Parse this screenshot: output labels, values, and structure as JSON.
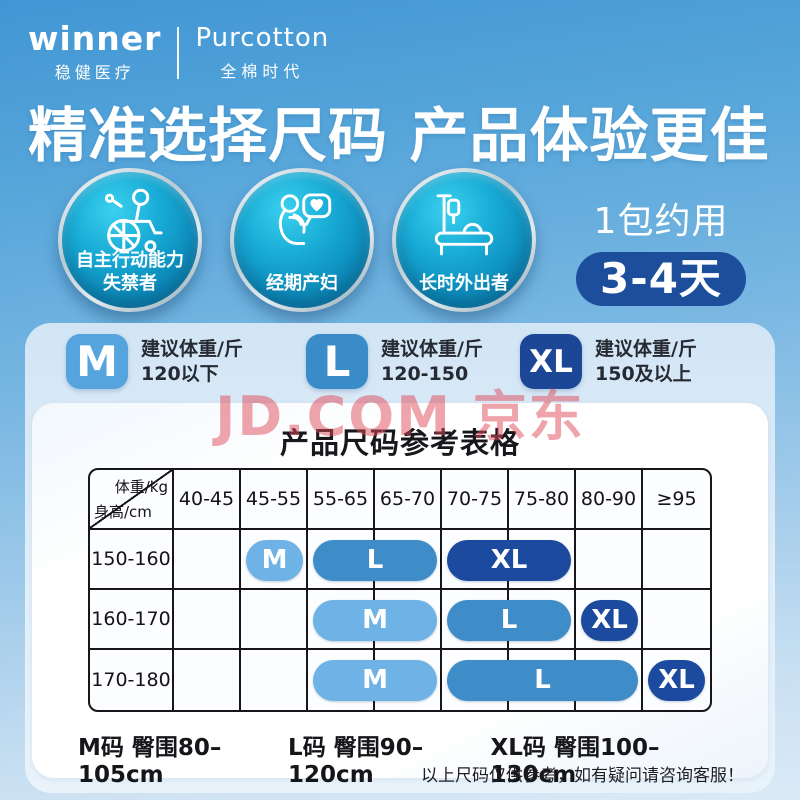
{
  "brand": {
    "winner_logo": "winner",
    "winner_sub": "稳健医疗",
    "purcotton_logo": "Purcotton",
    "purcotton_sub": "全棉时代"
  },
  "hero": {
    "title": "精准选择尺码 产品体验更佳",
    "audiences": [
      {
        "icon": "wheelchair-icon",
        "label": "自主行动能力\n失禁者"
      },
      {
        "icon": "maternity-icon",
        "label": "经期产妇"
      },
      {
        "icon": "bed-patient-icon",
        "label": "长时外出者"
      }
    ],
    "usage": {
      "prefix": "1包约用",
      "days": "3-4天",
      "days_bg": "#1d4e9c"
    }
  },
  "size_badges": [
    {
      "size": "M",
      "line1": "建议体重/斤",
      "line2": "120以下",
      "color": "#55a4de"
    },
    {
      "size": "L",
      "line1": "建议体重/斤",
      "line2": "120-150",
      "color": "#3a8cc9"
    },
    {
      "size": "XL",
      "line1": "建议体重/斤",
      "line2": "150及以上",
      "color": "#1b4796"
    }
  ],
  "watermark": {
    "text": "JD.COM 京东",
    "color": "rgba(224,74,88,0.5)"
  },
  "table": {
    "title": "产品尺码参考表格",
    "corner": {
      "top_right": "体重/kg",
      "bottom_left": "身高/cm"
    },
    "weight_columns": [
      "40-45",
      "45-55",
      "55-65",
      "65-70",
      "70-75",
      "75-80",
      "80-90",
      "≥95"
    ],
    "rows": [
      {
        "height": "150-160",
        "pills": [
          {
            "size": "M",
            "start": 2,
            "span": 1,
            "color": "#6fb3e6"
          },
          {
            "size": "L",
            "start": 3,
            "span": 2,
            "color": "#3e8dc9"
          },
          {
            "size": "XL",
            "start": 5,
            "span": 2,
            "color": "#1b4a9e"
          }
        ]
      },
      {
        "height": "160-170",
        "pills": [
          {
            "size": "M",
            "start": 3,
            "span": 2,
            "color": "#6fb3e6"
          },
          {
            "size": "L",
            "start": 5,
            "span": 2,
            "color": "#3e8dc9"
          },
          {
            "size": "XL",
            "start": 7,
            "span": 1,
            "color": "#1b4a9e"
          }
        ]
      },
      {
        "height": "170-180",
        "pills": [
          {
            "size": "M",
            "start": 3,
            "span": 2,
            "color": "#6fb3e6"
          },
          {
            "size": "L",
            "start": 5,
            "span": 3,
            "color": "#3e8dc9"
          },
          {
            "size": "XL",
            "start": 8,
            "span": 1,
            "color": "#1b4a9e"
          }
        ]
      }
    ]
  },
  "hip_sizes": [
    "M码 臀围80–105cm",
    "L码 臀围90–120cm",
    "XL码 臀围100–130cm"
  ],
  "disclaimer": "以上尺码仅供参考，如有疑问请咨询客服！",
  "chart_data": {
    "type": "table",
    "title": "产品尺码参考表格",
    "col_axis": "体重/kg",
    "row_axis": "身高/cm",
    "columns": [
      "40-45",
      "45-55",
      "55-65",
      "65-70",
      "70-75",
      "75-80",
      "80-90",
      "≥95"
    ],
    "rows": [
      "150-160",
      "160-170",
      "170-180"
    ],
    "cells": [
      {
        "height": "150-160",
        "M": "45-55kg",
        "L": "55-70kg",
        "XL": "70-80kg"
      },
      {
        "height": "160-170",
        "M": "55-70kg",
        "L": "70-80kg",
        "XL": "80-90kg"
      },
      {
        "height": "170-180",
        "M": "55-70kg",
        "L": "70-90kg",
        "XL": "≥95kg"
      }
    ]
  }
}
